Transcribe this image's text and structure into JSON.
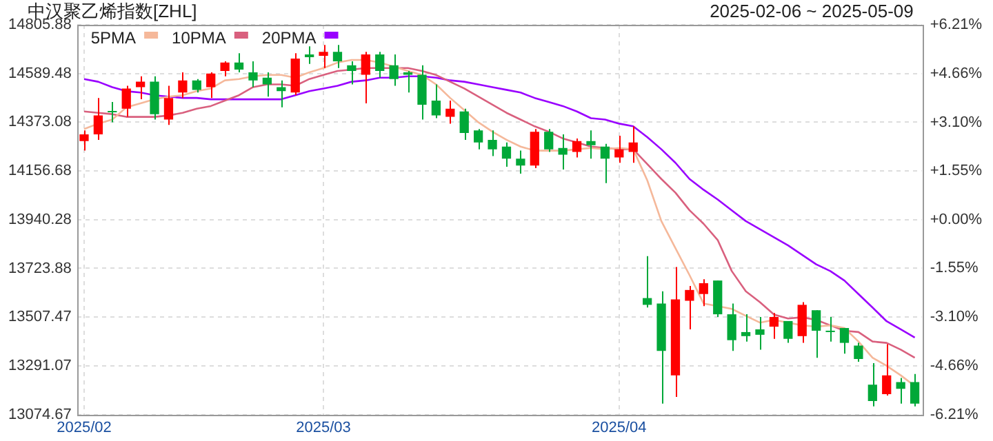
{
  "chart_data": {
    "type": "candlestick",
    "title": "中汉聚乙烯指数[ZHL]",
    "subtitle": "2025-02-06 ~ 2025-05-09",
    "categories": [
      "2025/02",
      null,
      null,
      null,
      null,
      null,
      null,
      null,
      null,
      null,
      null,
      null,
      null,
      null,
      null,
      null,
      null,
      "2025/03",
      null,
      null,
      null,
      null,
      null,
      null,
      null,
      null,
      null,
      null,
      null,
      null,
      null,
      null,
      null,
      null,
      null,
      null,
      null,
      null,
      "2025/04",
      null,
      null,
      null,
      null,
      null,
      null,
      null,
      null,
      null,
      null,
      null,
      null,
      null,
      null,
      null,
      null,
      null,
      null,
      null,
      null,
      null
    ],
    "ohlc": [
      [
        14289,
        14337,
        14247,
        14319
      ],
      [
        14319,
        14481,
        14295,
        14403
      ],
      [
        14423,
        14463,
        14373,
        14417
      ],
      [
        14433,
        14535,
        14397,
        14523
      ],
      [
        14529,
        14577,
        14475,
        14553
      ],
      [
        14553,
        14577,
        14385,
        14409
      ],
      [
        14385,
        14535,
        14361,
        14481
      ],
      [
        14505,
        14595,
        14481,
        14559
      ],
      [
        14559,
        14565,
        14505,
        14517
      ],
      [
        14529,
        14595,
        14481,
        14589
      ],
      [
        14601,
        14644,
        14577,
        14638
      ],
      [
        14638,
        14680,
        14595,
        14607
      ],
      [
        14595,
        14644,
        14529,
        14559
      ],
      [
        14571,
        14595,
        14487,
        14541
      ],
      [
        14529,
        14559,
        14439,
        14511
      ],
      [
        14505,
        14680,
        14493,
        14656
      ],
      [
        14674,
        14710,
        14632,
        14662
      ],
      [
        14668,
        14716,
        14614,
        14686
      ],
      [
        14686,
        14716,
        14614,
        14644
      ],
      [
        14626,
        14644,
        14541,
        14601
      ],
      [
        14584,
        14686,
        14457,
        14674
      ],
      [
        14674,
        14686,
        14571,
        14601
      ],
      [
        14626,
        14674,
        14535,
        14565
      ],
      [
        14595,
        14601,
        14505,
        14584
      ],
      [
        14584,
        14626,
        14385,
        14451
      ],
      [
        14469,
        14541,
        14391,
        14403
      ],
      [
        14397,
        14469,
        14367,
        14433
      ],
      [
        14421,
        14433,
        14295,
        14325
      ],
      [
        14337,
        14343,
        14253,
        14283
      ],
      [
        14295,
        14337,
        14223,
        14253
      ],
      [
        14265,
        14283,
        14175,
        14211
      ],
      [
        14211,
        14247,
        14145,
        14181
      ],
      [
        14181,
        14343,
        14169,
        14331
      ],
      [
        14331,
        14343,
        14241,
        14253
      ],
      [
        14259,
        14319,
        14163,
        14229
      ],
      [
        14241,
        14301,
        14217,
        14289
      ],
      [
        14289,
        14337,
        14211,
        14271
      ],
      [
        14265,
        14277,
        14103,
        14211
      ],
      [
        14217,
        14313,
        14193,
        14253
      ],
      [
        14241,
        14355,
        14193,
        14283
      ],
      [
        13592,
        13778,
        13550,
        13562
      ],
      [
        13568,
        13622,
        13123,
        13357
      ],
      [
        13249,
        13730,
        13153,
        13586
      ],
      [
        13580,
        13646,
        13453,
        13628
      ],
      [
        13610,
        13676,
        13556,
        13658
      ],
      [
        13670,
        13670,
        13508,
        13520
      ],
      [
        13520,
        13568,
        13357,
        13405
      ],
      [
        13441,
        13520,
        13399,
        13423
      ],
      [
        13453,
        13508,
        13363,
        13429
      ],
      [
        13465,
        13526,
        13411,
        13508
      ],
      [
        13490,
        13490,
        13393,
        13411
      ],
      [
        13423,
        13574,
        13393,
        13562
      ],
      [
        13538,
        13538,
        13327,
        13447
      ],
      [
        13447,
        13508,
        13399,
        13441
      ],
      [
        13459,
        13459,
        13345,
        13393
      ],
      [
        13381,
        13393,
        13309,
        13321
      ],
      [
        13207,
        13303,
        13111,
        13135
      ],
      [
        13165,
        13387,
        13159,
        13249
      ],
      [
        13219,
        13237,
        13123,
        13189
      ],
      [
        13219,
        13255,
        13111,
        13123
      ]
    ],
    "colors": [
      "#ff0000",
      "#ff0000",
      "#00a838",
      "#ff0000",
      "#ff0000",
      "#00a838",
      "#ff0000",
      "#ff0000",
      "#00a838",
      "#ff0000",
      "#ff0000",
      "#00a838",
      "#00a838",
      "#00a838",
      "#00a838",
      "#ff0000",
      "#00a838",
      "#ff0000",
      "#00a838",
      "#00a838",
      "#ff0000",
      "#00a838",
      "#00a838",
      "#00a838",
      "#00a838",
      "#00a838",
      "#ff0000",
      "#00a838",
      "#00a838",
      "#00a838",
      "#00a838",
      "#00a838",
      "#ff0000",
      "#00a838",
      "#00a838",
      "#ff0000",
      "#00a838",
      "#00a838",
      "#ff0000",
      "#ff0000",
      "#00a838",
      "#00a838",
      "#ff0000",
      "#ff0000",
      "#ff0000",
      "#00a838",
      "#00a838",
      "#00a838",
      "#00a838",
      "#ff0000",
      "#00a838",
      "#ff0000",
      "#00a838",
      "#00a838",
      "#00a838",
      "#00a838",
      "#00a838",
      "#ff0000",
      "#00a838",
      "#00a838"
    ],
    "series": [
      {
        "name": "5PMA",
        "type": "line",
        "color": "#f5b89a",
        "values": [
          14343,
          14367,
          14385,
          14439,
          14457,
          14475,
          14487,
          14493,
          14511,
          14523,
          14559,
          14565,
          14577,
          14583,
          14583,
          14571,
          14595,
          14614,
          14638,
          14650,
          14650,
          14638,
          14620,
          14601,
          14583,
          14541,
          14481,
          14427,
          14373,
          14331,
          14295,
          14265,
          14247,
          14247,
          14247,
          14253,
          14259,
          14253,
          14259,
          14253,
          14115,
          13934,
          13814,
          13694,
          13568,
          13556,
          13544,
          13513,
          13483,
          13495,
          13483,
          13471,
          13465,
          13471,
          13459,
          13399,
          13327,
          13291,
          13249,
          13201
        ]
      },
      {
        "name": "10PMA",
        "type": "line",
        "color": "#d9607e",
        "values": [
          14421,
          14415,
          14409,
          14397,
          14397,
          14397,
          14403,
          14415,
          14433,
          14445,
          14469,
          14493,
          14529,
          14541,
          14541,
          14535,
          14565,
          14583,
          14601,
          14607,
          14614,
          14614,
          14614,
          14614,
          14601,
          14583,
          14553,
          14523,
          14487,
          14451,
          14415,
          14385,
          14355,
          14331,
          14301,
          14283,
          14265,
          14259,
          14253,
          14253,
          14187,
          14121,
          14060,
          13982,
          13922,
          13850,
          13712,
          13622,
          13574,
          13519,
          13501,
          13507,
          13495,
          13471,
          13447,
          13441,
          13399,
          13393,
          13363,
          13327
        ]
      },
      {
        "name": "20PMA",
        "type": "line",
        "color": "#9900ff",
        "values": [
          14565,
          14553,
          14529,
          14511,
          14505,
          14493,
          14487,
          14481,
          14481,
          14475,
          14475,
          14475,
          14475,
          14475,
          14475,
          14493,
          14511,
          14523,
          14535,
          14553,
          14559,
          14571,
          14571,
          14577,
          14577,
          14571,
          14559,
          14553,
          14541,
          14529,
          14517,
          14505,
          14481,
          14463,
          14445,
          14421,
          14391,
          14385,
          14367,
          14355,
          14307,
          14253,
          14193,
          14121,
          14073,
          14030,
          13982,
          13934,
          13898,
          13862,
          13826,
          13784,
          13742,
          13712,
          13670,
          13610,
          13550,
          13489,
          13453,
          13417
        ]
      }
    ],
    "ylim": [
      13074.67,
      14805.88
    ],
    "yticks": [
      13074.67,
      13291.07,
      13507.47,
      13723.88,
      13940.28,
      14156.68,
      14373.08,
      14589.48,
      14805.88
    ],
    "y2lim": [
      -6.21,
      6.21
    ],
    "y2ticks": [
      {
        "value": -6.21,
        "label": "-6.21%"
      },
      {
        "value": -4.66,
        "label": "-4.66%"
      },
      {
        "value": -3.1,
        "label": "-3.10%"
      },
      {
        "value": -1.55,
        "label": "-1.55%"
      },
      {
        "value": 0,
        "label": "+0.00%"
      },
      {
        "value": 1.55,
        "label": "+1.55%"
      },
      {
        "value": 3.1,
        "label": "+3.10%"
      },
      {
        "value": 4.66,
        "label": "+4.66%"
      },
      {
        "value": 6.21,
        "label": "+6.21%"
      }
    ],
    "grid": true,
    "legend": "top left",
    "marker": "none",
    "line_style": "solid"
  }
}
